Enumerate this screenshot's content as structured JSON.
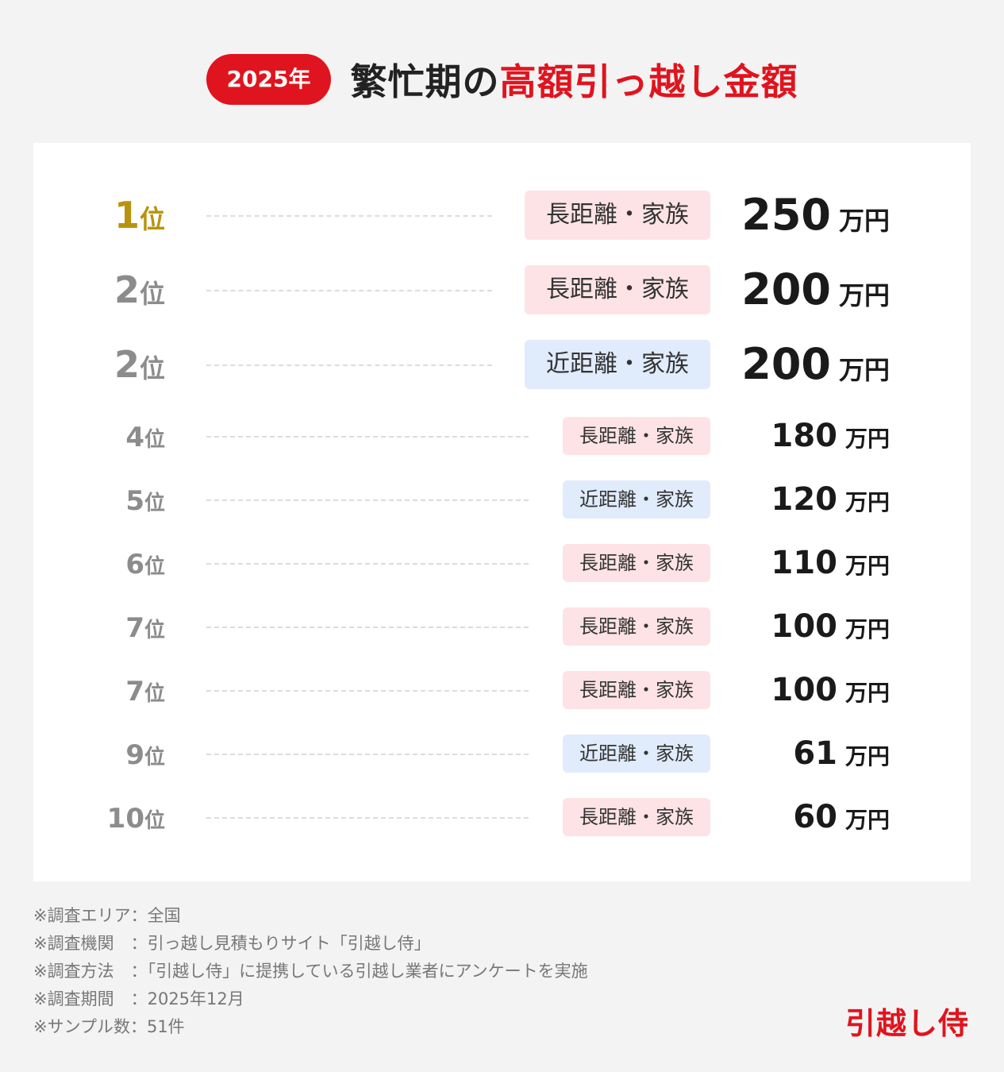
{
  "header": {
    "year_badge": "2025年",
    "title_plain": "繁忙期の",
    "title_accent": "高額引っ越し金額"
  },
  "colors": {
    "accent_red": "#e0141e",
    "gold_rank": "#b8930e",
    "long_distance_tag": "#fde3e5",
    "short_distance_tag": "#e0ebfb"
  },
  "ranking": [
    {
      "rank": "1",
      "rank_unit": "位",
      "category": "長距離・家族",
      "amount": "250",
      "amount_unit": "万円",
      "tag_type": "long"
    },
    {
      "rank": "2",
      "rank_unit": "位",
      "category": "長距離・家族",
      "amount": "200",
      "amount_unit": "万円",
      "tag_type": "long"
    },
    {
      "rank": "2",
      "rank_unit": "位",
      "category": "近距離・家族",
      "amount": "200",
      "amount_unit": "万円",
      "tag_type": "near"
    },
    {
      "rank": "4",
      "rank_unit": "位",
      "category": "長距離・家族",
      "amount": "180",
      "amount_unit": "万円",
      "tag_type": "long"
    },
    {
      "rank": "5",
      "rank_unit": "位",
      "category": "近距離・家族",
      "amount": "120",
      "amount_unit": "万円",
      "tag_type": "near"
    },
    {
      "rank": "6",
      "rank_unit": "位",
      "category": "長距離・家族",
      "amount": "110",
      "amount_unit": "万円",
      "tag_type": "long"
    },
    {
      "rank": "7",
      "rank_unit": "位",
      "category": "長距離・家族",
      "amount": "100",
      "amount_unit": "万円",
      "tag_type": "long"
    },
    {
      "rank": "7",
      "rank_unit": "位",
      "category": "長距離・家族",
      "amount": "100",
      "amount_unit": "万円",
      "tag_type": "long"
    },
    {
      "rank": "9",
      "rank_unit": "位",
      "category": "近距離・家族",
      "amount": "61",
      "amount_unit": "万円",
      "tag_type": "near"
    },
    {
      "rank": "10",
      "rank_unit": "位",
      "category": "長距離・家族",
      "amount": "60",
      "amount_unit": "万円",
      "tag_type": "long"
    }
  ],
  "notes": [
    "※調査エリア：全国",
    "※調査機関　：引っ越し見積もりサイト「引越し侍」",
    "※調査方法　：「引越し侍」に提携している引越し業者にアンケートを実施",
    "※調査期間　：2025年12月",
    "※サンプル数：51件"
  ],
  "brand": "引越し侍"
}
